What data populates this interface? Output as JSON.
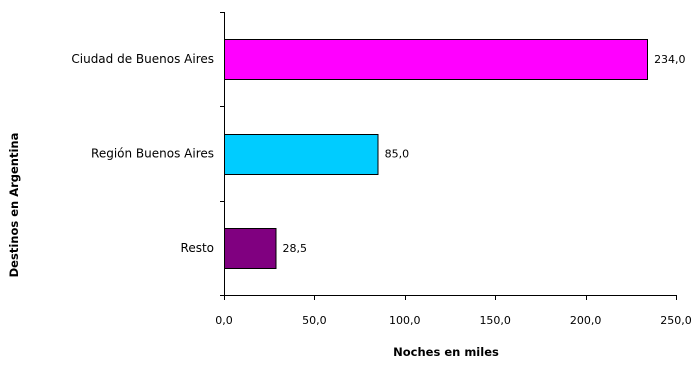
{
  "chart_data": {
    "type": "bar",
    "orientation": "horizontal",
    "categories": [
      "Ciudad de Buenos Aires",
      "Región Buenos Aires",
      "Resto"
    ],
    "values": [
      234.0,
      85.0,
      28.5
    ],
    "data_labels": [
      "234,0",
      "85,0",
      "28,5"
    ],
    "colors": [
      "#ff00ff",
      "#00ccff",
      "#800080"
    ],
    "title": "",
    "xlabel": "Noches en miles",
    "ylabel": "Destinos en Argentina",
    "xlim": [
      0,
      250
    ],
    "x_ticks": [
      0,
      50,
      100,
      150,
      200,
      250
    ],
    "x_tick_labels": [
      "0,0",
      "50,0",
      "100,0",
      "150,0",
      "200,0",
      "250,0"
    ],
    "grid": false,
    "legend": "none"
  }
}
